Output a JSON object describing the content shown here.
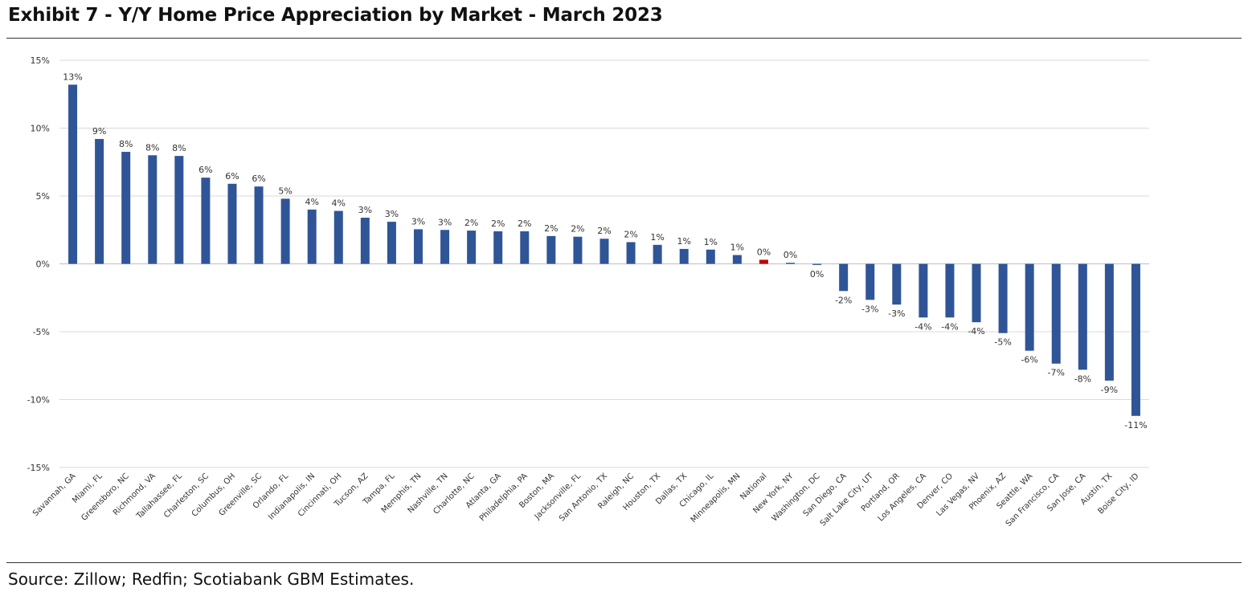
{
  "title": "Exhibit 7 - Y/Y Home Price Appreciation by Market - March 2023",
  "source": "Source: Zillow; Redfin; Scotiabank GBM Estimates.",
  "colors": {
    "bar": "#2f5597",
    "highlight": "#c00000",
    "grid": "#d9d9d9",
    "zero": "#bfbfbf"
  },
  "chart_data": {
    "type": "bar",
    "title": "Exhibit 7 - Y/Y Home Price Appreciation by Market - March 2023",
    "xlabel": "",
    "ylabel": "",
    "ylim": [
      -15,
      15
    ],
    "yticks": [
      15,
      10,
      5,
      0,
      -5,
      -10,
      -15
    ],
    "ytick_labels": [
      "15%",
      "10%",
      "5%",
      "0%",
      "-5%",
      "-10%",
      "-15%"
    ],
    "grid": true,
    "highlight_category": "National",
    "categories": [
      "Savannah, GA",
      "Miami, FL",
      "Greensboro, NC",
      "Richmond, VA",
      "Tallahassee, FL",
      "Charleston, SC",
      "Columbus, OH",
      "Greenville, SC",
      "Orlando, FL",
      "Indianapolis, IN",
      "Cincinnati, OH",
      "Tucson, AZ",
      "Tampa, FL",
      "Memphis, TN",
      "Nashville, TN",
      "Charlotte, NC",
      "Atlanta, GA",
      "Philadelphia, PA",
      "Boston, MA",
      "Jacksonville, FL",
      "San Antonio, TX",
      "Raleigh, NC",
      "Houston, TX",
      "Dallas, TX",
      "Chicago, IL",
      "Minneapolis, MN",
      "National",
      "New York, NY",
      "Washington, DC",
      "San Diego, CA",
      "Salt Lake City, UT",
      "Portland, OR",
      "Los Angeles, CA",
      "Denver, CO",
      "Las Vegas, NV",
      "Phoenix, AZ",
      "Seattle, WA",
      "San Francisco, CA",
      "San Jose, CA",
      "Austin, TX",
      "Boise City, ID"
    ],
    "values": [
      13.2,
      9.2,
      8.25,
      8.0,
      7.95,
      6.35,
      5.9,
      5.7,
      4.8,
      4.0,
      3.9,
      3.4,
      3.1,
      2.55,
      2.5,
      2.45,
      2.4,
      2.4,
      2.05,
      2.0,
      1.85,
      1.6,
      1.4,
      1.1,
      1.05,
      0.65,
      0.3,
      0.08,
      -0.08,
      -2.0,
      -2.65,
      -3.0,
      -3.95,
      -3.95,
      -4.3,
      -5.1,
      -6.4,
      -7.35,
      -7.8,
      -8.6,
      -11.2
    ],
    "data_labels": [
      "13%",
      "9%",
      "8%",
      "8%",
      "8%",
      "6%",
      "6%",
      "6%",
      "5%",
      "4%",
      "4%",
      "3%",
      "3%",
      "3%",
      "3%",
      "2%",
      "2%",
      "2%",
      "2%",
      "2%",
      "2%",
      "2%",
      "1%",
      "1%",
      "1%",
      "1%",
      "0%",
      "0%",
      "0%",
      "-2%",
      "-3%",
      "-3%",
      "-4%",
      "-4%",
      "-4%",
      "-5%",
      "-6%",
      "-7%",
      "-8%",
      "-9%",
      "-11%"
    ]
  }
}
